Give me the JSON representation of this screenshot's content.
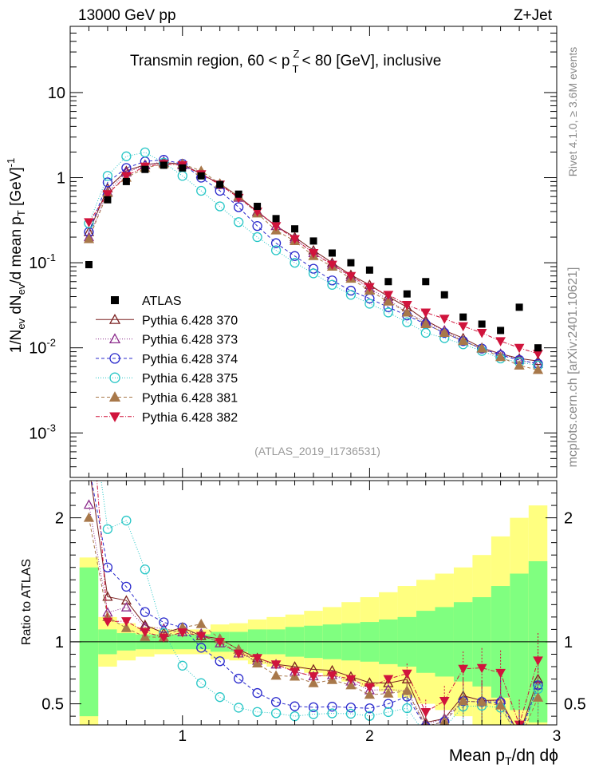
{
  "chart_data": {
    "type": "scatter",
    "energy_label": "13000 GeV pp",
    "process_label": "Z+Jet",
    "title": "Transmin region, 60 < p_T^Z < 80 [GeV], inclusive",
    "title_parts": {
      "pre": "Transmin region, 60 < p",
      "sup": "Z",
      "sub": "T",
      "post": " < 80 [GeV], inclusive"
    },
    "ylabel": "1/N_ev dN_ev/d mean p_T [GeV]^-1",
    "ylabel_parts": {
      "a": "1/N",
      "a_sub": "ev",
      "b": " dN",
      "b_sub": "ev",
      "c": "/d mean p",
      "c_sub": "T",
      "d": " [GeV]",
      "d_sup": "-1"
    },
    "ratio_ylabel": "Ratio to ATLAS",
    "xlabel": "Mean p_T/dη dϕ",
    "xlabel_parts": {
      "a": "Mean p",
      "a_sub": "T",
      "b": "/dη dϕ"
    },
    "analysis_id": "(ATLAS_2019_I1736531)",
    "right_label_top": "Rivet 4.1.0, ≥ 3.6M events",
    "right_label_bottom": "mcplots.cern.ch [arXiv:2401.10621]",
    "xlim": [
      0.4,
      3.0
    ],
    "ylim_main": [
      0.0003,
      60
    ],
    "ylim_ratio": [
      0.33,
      2.3
    ],
    "x_ticks": [
      "1",
      "2",
      "3"
    ],
    "y_ticks_main": [
      {
        "v": 0.001,
        "base": "10",
        "exp": "-3"
      },
      {
        "v": 0.01,
        "base": "10",
        "exp": "-2"
      },
      {
        "v": 0.1,
        "base": "10",
        "exp": "-1"
      },
      {
        "v": 1,
        "base": "1",
        "exp": ""
      },
      {
        "v": 10,
        "base": "10",
        "exp": ""
      }
    ],
    "y_ticks_ratio": [
      {
        "v": 0.5,
        "label": "0.5"
      },
      {
        "v": 1,
        "label": "1"
      },
      {
        "v": 2,
        "label": "2"
      }
    ],
    "x": [
      0.5,
      0.6,
      0.7,
      0.8,
      0.9,
      1.0,
      1.1,
      1.2,
      1.3,
      1.4,
      1.5,
      1.6,
      1.7,
      1.8,
      1.9,
      2.0,
      2.1,
      2.2,
      2.3,
      2.4,
      2.5,
      2.6,
      2.7,
      2.8,
      2.9
    ],
    "atlas": [
      0.095,
      0.55,
      0.9,
      1.25,
      1.4,
      1.3,
      1.05,
      0.83,
      0.64,
      0.46,
      0.33,
      0.25,
      0.18,
      0.13,
      0.1,
      0.082,
      0.06,
      0.043,
      0.06,
      0.042,
      0.023,
      0.019,
      0.016,
      0.03,
      0.01
    ],
    "band_inner": [
      0.6,
      0.1,
      0.07,
      0.06,
      0.06,
      0.06,
      0.06,
      0.08,
      0.08,
      0.1,
      0.1,
      0.12,
      0.13,
      0.14,
      0.15,
      0.16,
      0.18,
      0.2,
      0.25,
      0.28,
      0.32,
      0.36,
      0.45,
      0.55,
      0.65
    ],
    "band_outer": [
      0.68,
      0.2,
      0.15,
      0.12,
      0.1,
      0.1,
      0.1,
      0.14,
      0.15,
      0.18,
      0.2,
      0.22,
      0.25,
      0.28,
      0.32,
      0.36,
      0.4,
      0.45,
      0.5,
      0.55,
      0.6,
      0.7,
      0.85,
      1.0,
      1.1
    ],
    "legend": [
      {
        "label": "ATLAS",
        "marker": "square_filled",
        "color": "#000000"
      },
      {
        "label": "Pythia 6.428 370",
        "marker": "triangle_open",
        "color": "#7a1f1f"
      },
      {
        "label": "Pythia 6.428 373",
        "marker": "triangle_open",
        "color": "#8b2a8b"
      },
      {
        "label": "Pythia 6.428 374",
        "marker": "circle_open",
        "color": "#2828cc"
      },
      {
        "label": "Pythia 6.428 375",
        "marker": "circle_open",
        "color": "#26c6c6"
      },
      {
        "label": "Pythia 6.428 381",
        "marker": "triangle_filled",
        "color": "#a8784a"
      },
      {
        "label": "Pythia 6.428 382",
        "marker": "triangle_down_filled",
        "color": "#d0143c"
      }
    ],
    "series": [
      {
        "name": "Pythia 6.428 370",
        "color": "#7a1f1f",
        "marker": "triangle_open",
        "dash": "",
        "values": [
          0.23,
          0.75,
          1.2,
          1.42,
          1.5,
          1.45,
          1.1,
          0.85,
          0.6,
          0.4,
          0.27,
          0.2,
          0.14,
          0.1,
          0.072,
          0.055,
          0.04,
          0.03,
          0.021,
          0.016,
          0.013,
          0.01,
          0.0085,
          0.0075,
          0.007
        ]
      },
      {
        "name": "Pythia 6.428 373",
        "color": "#8b2a8b",
        "marker": "triangle_open",
        "dash": "1,2",
        "values": [
          0.2,
          0.68,
          1.15,
          1.4,
          1.55,
          1.4,
          1.12,
          0.82,
          0.58,
          0.39,
          0.27,
          0.19,
          0.13,
          0.095,
          0.068,
          0.05,
          0.037,
          0.026,
          0.02,
          0.016,
          0.012,
          0.0098,
          0.0085,
          0.0072,
          0.0065
        ]
      },
      {
        "name": "Pythia 6.428 374",
        "color": "#2828cc",
        "marker": "circle_open",
        "dash": "4,3",
        "values": [
          0.23,
          0.88,
          1.3,
          1.55,
          1.62,
          1.45,
          1.0,
          0.7,
          0.45,
          0.27,
          0.17,
          0.12,
          0.085,
          0.062,
          0.047,
          0.038,
          0.03,
          0.024,
          0.019,
          0.015,
          0.012,
          0.0098,
          0.0082,
          0.0072,
          0.0065
        ]
      },
      {
        "name": "Pythia 6.428 375",
        "color": "#26c6c6",
        "marker": "circle_open",
        "dash": "1,2",
        "values": [
          0.29,
          1.05,
          1.78,
          1.98,
          1.5,
          1.05,
          0.7,
          0.46,
          0.3,
          0.2,
          0.14,
          0.1,
          0.075,
          0.055,
          0.042,
          0.033,
          0.026,
          0.02,
          0.015,
          0.013,
          0.011,
          0.0092,
          0.0075,
          0.0068,
          0.0062
        ]
      },
      {
        "name": "Pythia 6.428 381",
        "color": "#a8784a",
        "marker": "triangle_filled",
        "dash": "4,3",
        "values": [
          0.19,
          0.66,
          1.0,
          1.3,
          1.45,
          1.45,
          1.2,
          0.85,
          0.6,
          0.38,
          0.24,
          0.18,
          0.12,
          0.09,
          0.065,
          0.047,
          0.035,
          0.026,
          0.019,
          0.015,
          0.012,
          0.0098,
          0.0078,
          0.0062,
          0.0055
        ]
      },
      {
        "name": "Pythia 6.428 382",
        "color": "#d0143c",
        "marker": "triangle_down_filled",
        "dash": "5,2,1,2",
        "values": [
          0.3,
          0.64,
          1.05,
          1.35,
          1.45,
          1.4,
          1.1,
          0.83,
          0.58,
          0.4,
          0.27,
          0.19,
          0.13,
          0.095,
          0.07,
          0.052,
          0.042,
          0.032,
          0.026,
          0.022,
          0.018,
          0.015,
          0.012,
          0.01,
          0.0085
        ]
      }
    ]
  }
}
